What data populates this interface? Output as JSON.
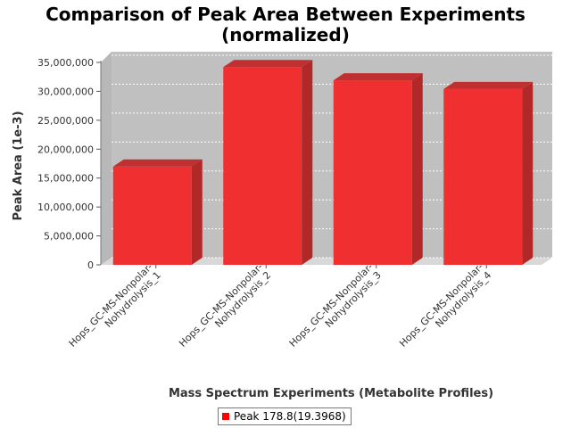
{
  "chart_data": {
    "type": "bar",
    "title_line1": "Comparison of Peak Area Between Experiments",
    "title_line2": "(normalized)",
    "xlabel": "Mass Spectrum Experiments (Metabolite Profiles)",
    "ylabel": "Peak Area (1e-3)",
    "categories": [
      [
        "Hops_GC-MS-Nonpolar-",
        "Nohydrolysis_1"
      ],
      [
        "Hops_GC-MS-Nonpolar-",
        "Nohydrolysis_2"
      ],
      [
        "Hops_GC-MS-Nonpolar-",
        "Nohydrolysis_3"
      ],
      [
        "Hops_GC-MS-Nonpolar-",
        "Nohydrolysis_4"
      ]
    ],
    "series": [
      {
        "name": "Peak 178.8(19.3968)",
        "values": [
          17000000,
          34200000,
          31900000,
          30400000
        ]
      }
    ],
    "ylim": [
      0,
      35000000
    ],
    "yticks": [
      0,
      5000000,
      10000000,
      15000000,
      20000000,
      25000000,
      30000000,
      35000000
    ],
    "ytick_labels": [
      "0",
      "5,000,000",
      "10,000,000",
      "15,000,000",
      "20,000,000",
      "25,000,000",
      "30,000,000",
      "35,000,000"
    ],
    "grid": true,
    "legend_position": "bottom",
    "colors": {
      "bar_front": "#f03030",
      "bar_side": "#b02828",
      "bar_top": "#c03030",
      "plot_back": "#c0c0c0",
      "plot_floor": "#d8d8d8"
    }
  }
}
